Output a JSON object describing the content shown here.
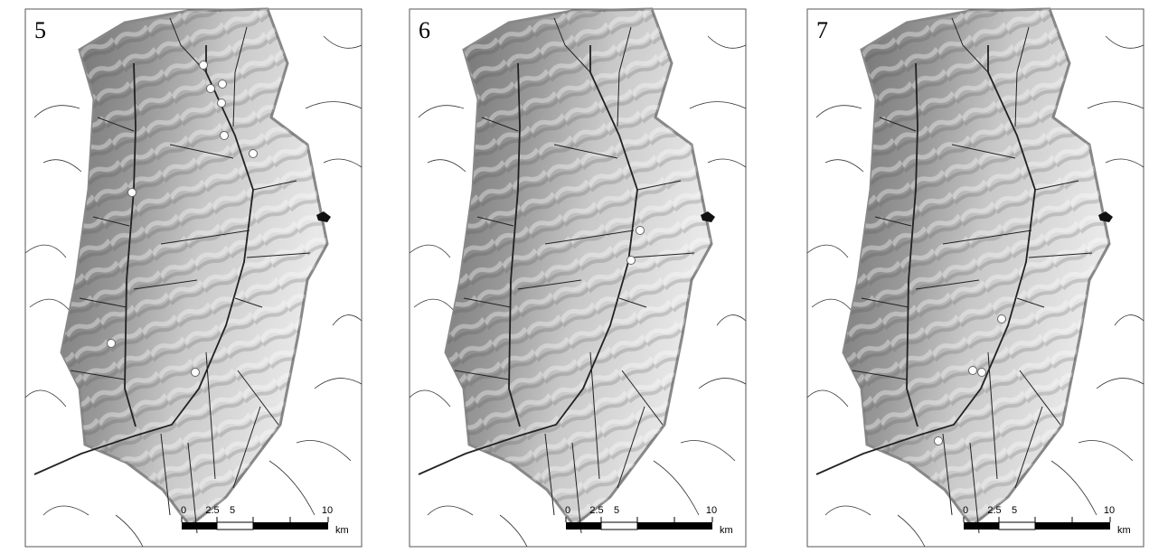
{
  "panels": [
    {
      "label": "5",
      "scale": {
        "ticks": [
          "0",
          "2.5",
          "5",
          "10"
        ],
        "unit": "km"
      }
    },
    {
      "label": "6",
      "scale": {
        "ticks": [
          "0",
          "2.5",
          "5",
          "10"
        ],
        "unit": "km"
      }
    },
    {
      "label": "7",
      "scale": {
        "ticks": [
          "0",
          "2.5",
          "5",
          "10"
        ],
        "unit": "km"
      }
    }
  ]
}
